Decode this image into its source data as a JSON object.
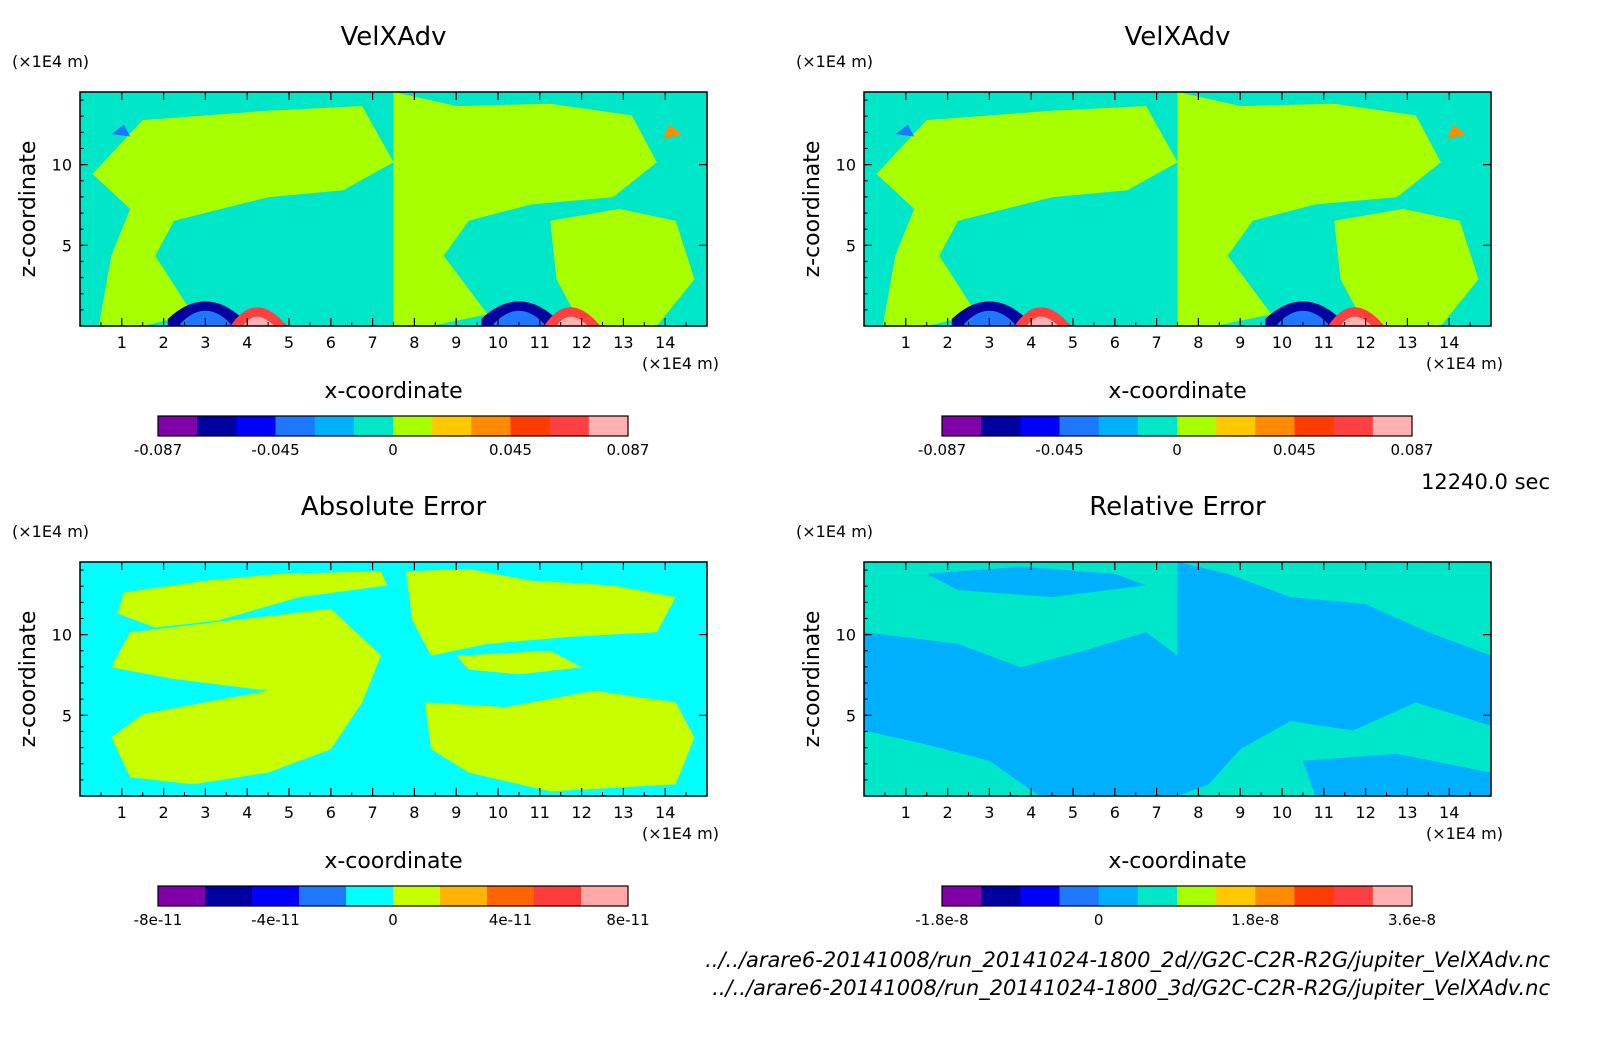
{
  "time_label": "12240.0 sec",
  "files": [
    "../../arare6-20141008/run_20141024-1800_2d//G2C-C2R-R2G/jupiter_VelXAdv.nc",
    "../../arare6-20141008/run_20141024-1800_3d/G2C-C2R-R2G/jupiter_VelXAdv.nc"
  ],
  "chart_data": [
    {
      "type": "heatmap",
      "title": "VelXAdv",
      "xlabel": "x-coordinate",
      "ylabel": "z-coordinate",
      "xunit": "(×1E4 m)",
      "yunit": "(×1E4 m)",
      "xlim": [
        0,
        15
      ],
      "ylim": [
        0,
        14.5
      ],
      "xticks": [
        "1",
        "2",
        "3",
        "4",
        "5",
        "6",
        "7",
        "8",
        "9",
        "10",
        "11",
        "12",
        "13",
        "14"
      ],
      "yticks": [
        "5",
        "10"
      ],
      "colorbar": {
        "colors": [
          "#7f00a8",
          "#0000a0",
          "#0000ff",
          "#1e78ff",
          "#00b0ff",
          "#00e6c8",
          "#a8ff00",
          "#ffc800",
          "#ff8c00",
          "#ff3c00",
          "#ff4040",
          "#ffb0b0"
        ],
        "labels": [
          "-0.087",
          "-0.045",
          "0",
          "0.045",
          "0.087"
        ]
      },
      "background_color": "#00e6c8",
      "pattern": "wind"
    },
    {
      "type": "heatmap",
      "title": "VelXAdv",
      "xlabel": "x-coordinate",
      "ylabel": "z-coordinate",
      "xunit": "(×1E4 m)",
      "yunit": "(×1E4 m)",
      "xlim": [
        0,
        15
      ],
      "ylim": [
        0,
        14.5
      ],
      "xticks": [
        "1",
        "2",
        "3",
        "4",
        "5",
        "6",
        "7",
        "8",
        "9",
        "10",
        "11",
        "12",
        "13",
        "14"
      ],
      "yticks": [
        "5",
        "10"
      ],
      "colorbar": {
        "colors": [
          "#7f00a8",
          "#0000a0",
          "#0000ff",
          "#1e78ff",
          "#00b0ff",
          "#00e6c8",
          "#a8ff00",
          "#ffc800",
          "#ff8c00",
          "#ff3c00",
          "#ff4040",
          "#ffb0b0"
        ],
        "labels": [
          "-0.087",
          "-0.045",
          "0",
          "0.045",
          "0.087"
        ]
      },
      "background_color": "#00e6c8",
      "pattern": "wind"
    },
    {
      "type": "heatmap",
      "title": "Absolute Error",
      "xlabel": "x-coordinate",
      "ylabel": "z-coordinate",
      "xunit": "(×1E4 m)",
      "yunit": "(×1E4 m)",
      "xlim": [
        0,
        15
      ],
      "ylim": [
        0,
        14.5
      ],
      "xticks": [
        "1",
        "2",
        "3",
        "4",
        "5",
        "6",
        "7",
        "8",
        "9",
        "10",
        "11",
        "12",
        "13",
        "14"
      ],
      "yticks": [
        "5",
        "10"
      ],
      "colorbar": {
        "colors": [
          "#7f00a8",
          "#0000a0",
          "#0000ff",
          "#1e78ff",
          "#00ffff",
          "#c8ff00",
          "#ffb400",
          "#ff6400",
          "#ff3c3c",
          "#ffa8a8"
        ],
        "labels": [
          "-8e-11",
          "-4e-11",
          "0",
          "4e-11",
          "8e-11"
        ]
      },
      "background_color": "#00ffff",
      "pattern": "abs"
    },
    {
      "type": "heatmap",
      "title": "Relative Error",
      "xlabel": "x-coordinate",
      "ylabel": "z-coordinate",
      "xunit": "(×1E4 m)",
      "yunit": "(×1E4 m)",
      "xlim": [
        0,
        15
      ],
      "ylim": [
        0,
        14.5
      ],
      "xticks": [
        "1",
        "2",
        "3",
        "4",
        "5",
        "6",
        "7",
        "8",
        "9",
        "10",
        "11",
        "12",
        "13",
        "14"
      ],
      "yticks": [
        "5",
        "10"
      ],
      "colorbar": {
        "colors": [
          "#7f00a8",
          "#0000a0",
          "#0000ff",
          "#1e78ff",
          "#00b0ff",
          "#00e6c8",
          "#a8ff00",
          "#ffc800",
          "#ff8c00",
          "#ff3c00",
          "#ff4040",
          "#ffb0b0"
        ],
        "labels": [
          "-1.8e-8",
          "0",
          "1.8e-8",
          "3.6e-8"
        ]
      },
      "background_color": "#00e6c8",
      "pattern": "rel"
    }
  ]
}
